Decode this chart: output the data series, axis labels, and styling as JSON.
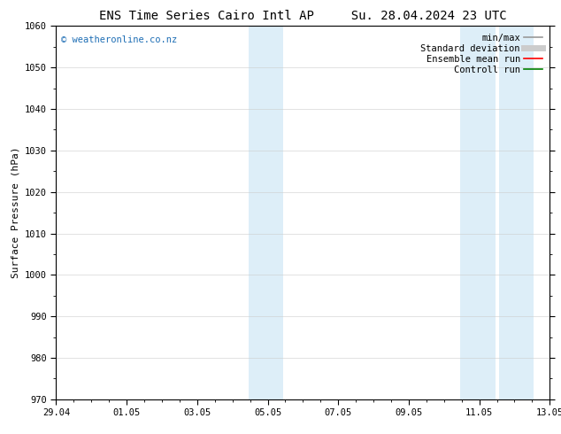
{
  "title_left": "ENS Time Series Cairo Intl AP",
  "title_right": "Su. 28.04.2024 23 UTC",
  "ylabel": "Surface Pressure (hPa)",
  "ylim": [
    970,
    1060
  ],
  "yticks": [
    970,
    980,
    990,
    1000,
    1010,
    1020,
    1030,
    1040,
    1050,
    1060
  ],
  "xtick_labels": [
    "29.04",
    "01.05",
    "03.05",
    "05.05",
    "07.05",
    "09.05",
    "11.05",
    "13.05"
  ],
  "xtick_positions": [
    0,
    2,
    4,
    6,
    8,
    10,
    12,
    14
  ],
  "xlim": [
    0,
    14
  ],
  "shaded_bands": [
    {
      "x_start": 5.45,
      "x_end": 6.45
    },
    {
      "x_start": 11.45,
      "x_end": 12.45
    },
    {
      "x_start": 12.55,
      "x_end": 13.55
    }
  ],
  "shaded_color": "#ddeef8",
  "background_color": "#ffffff",
  "watermark_text": "© weatheronline.co.nz",
  "watermark_color": "#1e6eb5",
  "legend_entries": [
    {
      "label": "min/max",
      "color": "#999999",
      "lw": 1.2,
      "style": "solid"
    },
    {
      "label": "Standard deviation",
      "color": "#cccccc",
      "lw": 5,
      "style": "solid"
    },
    {
      "label": "Ensemble mean run",
      "color": "#ff0000",
      "lw": 1.2,
      "style": "solid"
    },
    {
      "label": "Controll run",
      "color": "#008000",
      "lw": 1.2,
      "style": "solid"
    }
  ],
  "grid_color": "#cccccc",
  "grid_lw": 0.4,
  "tick_color": "#000000",
  "spine_color": "#000000",
  "title_fontsize": 10,
  "label_fontsize": 8,
  "tick_fontsize": 7.5,
  "legend_fontsize": 7.5,
  "watermark_fontsize": 7.5
}
